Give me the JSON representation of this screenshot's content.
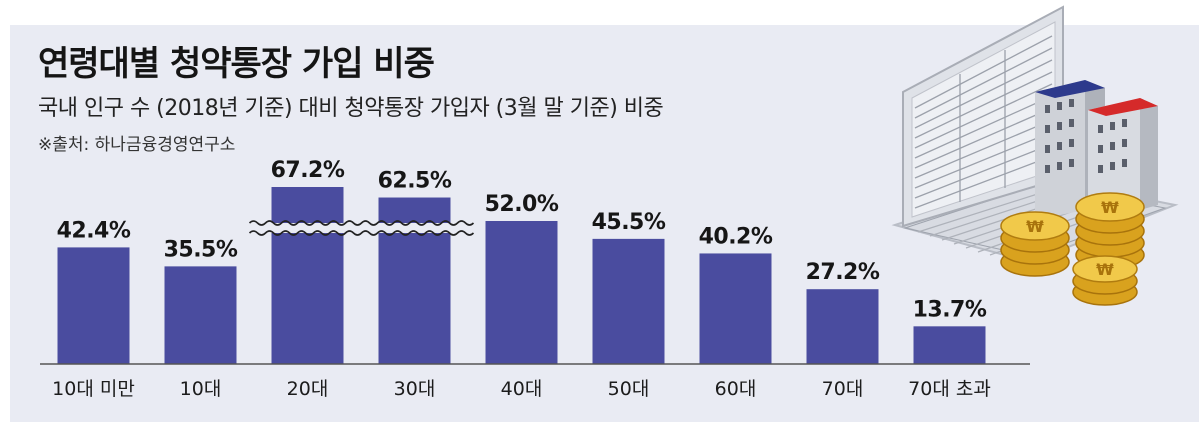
{
  "title": "연령대별 청약통장 가입 비중",
  "subtitle": "국내 인구 수 (2018년 기준) 대비 청약통장 가입자 (3월 말 기준) 비중",
  "source": "※출처: 하나금융경영연구소",
  "chart_data": {
    "type": "bar",
    "title": "연령대별 청약통장 가입 비중",
    "subtitle": "국내 인구 수 (2018년 기준) 대비 청약통장 가입자 (3월 말 기준) 비중",
    "categories": [
      "10대 미만",
      "10대",
      "20대",
      "30대",
      "40대",
      "50대",
      "60대",
      "70대",
      "70대 초과"
    ],
    "values": [
      42.4,
      35.5,
      67.2,
      62.5,
      52.0,
      45.5,
      40.2,
      27.2,
      13.7
    ],
    "value_labels": [
      "42.4%",
      "35.5%",
      "67.2%",
      "62.5%",
      "52.0%",
      "45.5%",
      "40.2%",
      "27.2%",
      "13.7%"
    ],
    "unit": "%",
    "axis_break": true,
    "grid": false,
    "legend": "none",
    "xlabel": "",
    "ylabel": "",
    "bar_color": "#4a4c9f"
  },
  "colors": {
    "panel_background": "#e9ebf3",
    "bar": "#4a4c9f",
    "baseline": "#555555"
  },
  "illustration": {
    "description_icons": [
      "laptop-icon",
      "building-icon",
      "coin-stack-icon"
    ]
  }
}
